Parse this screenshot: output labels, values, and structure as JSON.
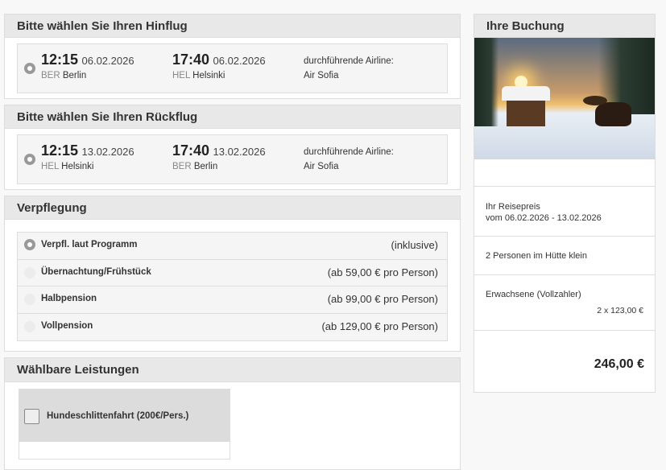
{
  "outbound": {
    "title": "Bitte wählen Sie Ihren Hinflug",
    "dep_time": "12:15",
    "dep_date": "06.02.2026",
    "dep_code": "BER",
    "dep_city": "Berlin",
    "arr_time": "17:40",
    "arr_date": "06.02.2026",
    "arr_code": "HEL",
    "arr_city": "Helsinki",
    "airline_label": "durchführende Airline:",
    "airline": "Air Sofia"
  },
  "return": {
    "title": "Bitte wählen Sie Ihren Rückflug",
    "dep_time": "12:15",
    "dep_date": "13.02.2026",
    "dep_code": "HEL",
    "dep_city": "Helsinki",
    "arr_time": "17:40",
    "arr_date": "13.02.2026",
    "arr_code": "BER",
    "arr_city": "Berlin",
    "airline_label": "durchführende Airline:",
    "airline": "Air Sofia"
  },
  "meals": {
    "title": "Verpflegung",
    "options": [
      {
        "label": "Verpfl. laut Programm",
        "price": "(inklusive)",
        "selected": true
      },
      {
        "label": "Übernachtung/Frühstück",
        "price": "(ab 59,00 € pro Person)",
        "selected": false
      },
      {
        "label": "Halbpension",
        "price": "(ab 99,00 € pro Person)",
        "selected": false
      },
      {
        "label": "Vollpension",
        "price": "(ab 129,00 € pro Person)",
        "selected": false
      }
    ]
  },
  "extras": {
    "title": "Wählbare Leistungen",
    "items": [
      {
        "label": "Hundeschlittenfahrt (200€/Pers.)",
        "checked": false
      }
    ]
  },
  "booking": {
    "title": "Ihre Buchung",
    "price_label": "Ihr Reisepreis",
    "date_range": "vom 06.02.2026 - 13.02.2026",
    "persons": "2 Personen im Hütte klein",
    "traveler_type": "Erwachsene (Vollzahler)",
    "traveler_price": "2 x 123,00 €",
    "total": "246,00 €"
  }
}
